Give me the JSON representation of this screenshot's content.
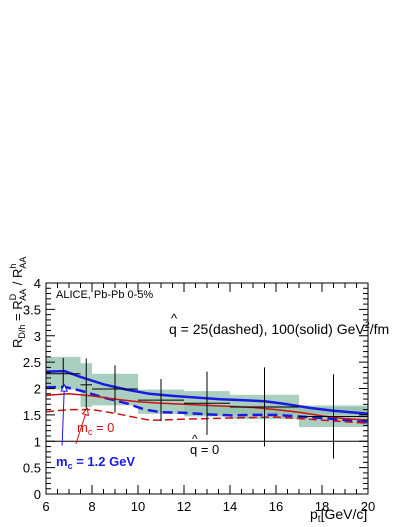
{
  "chart_data": {
    "type": "line",
    "experiment_label": "ALICE, Pb-Pb 0-5%",
    "xlabel_main": "p",
    "xlabel_sub": "t",
    "xlabel_unit": "[GeV/c]",
    "ylabel_main": "R",
    "ylabel_sub": "D/h",
    "ylabel_eq": " = R",
    "ylabel_sup_d": "D",
    "ylabel_sub_aa1": "AA",
    "ylabel_slash": " / R",
    "ylabel_sup_h": "h",
    "ylabel_sub_aa2": "AA",
    "xlim": [
      6,
      20
    ],
    "ylim": [
      0,
      4
    ],
    "x_ticks": [
      "6",
      "8",
      "10",
      "12",
      "14",
      "16",
      "18",
      "20"
    ],
    "y_ticks": [
      "0",
      "0.5",
      "1",
      "1.5",
      "2",
      "2.5",
      "3",
      "3.5",
      "4"
    ],
    "annotations": {
      "qhat_label_prefix": "q",
      "qhat_label_text": " = 25(dashed), 100(solid) GeV",
      "qhat_label_sup": "2",
      "qhat_label_suffix": "/fm",
      "qhat_zero_prefix": "q",
      "qhat_zero_text": " = 0",
      "mc_zero_prefix": "m",
      "mc_zero_sub": "c",
      "mc_zero_text": " = 0",
      "mc_12_prefix": "m",
      "mc_12_sub": "c",
      "mc_12_text": " = 1.2 GeV"
    },
    "reference_line": {
      "y": 1
    },
    "data_points": [
      {
        "x": 6.75,
        "x_err": 0.75,
        "y": 2.28,
        "y_err": 0.3,
        "sys_low": 1.98,
        "sys_high": 2.6
      },
      {
        "x": 7.75,
        "x_err": 0.25,
        "y": 2.07,
        "y_err": 0.5,
        "sys_low": 1.65,
        "sys_high": 2.48
      },
      {
        "x": 9.0,
        "x_err": 1.0,
        "y": 1.99,
        "y_err": 0.45,
        "sys_low": 1.68,
        "sys_high": 2.28
      },
      {
        "x": 11.0,
        "x_err": 1.0,
        "y": 1.78,
        "y_err": 0.4,
        "sys_low": 1.52,
        "sys_high": 1.98
      },
      {
        "x": 13.0,
        "x_err": 1.0,
        "y": 1.72,
        "y_err": 0.6,
        "sys_low": 1.47,
        "sys_high": 1.95
      },
      {
        "x": 15.5,
        "x_err": 1.5,
        "y": 1.65,
        "y_err": 0.75,
        "sys_low": 1.42,
        "sys_high": 1.88
      },
      {
        "x": 18.5,
        "x_err": 1.5,
        "y": 1.47,
        "y_err": 0.8,
        "sys_low": 1.27,
        "sys_high": 1.65
      }
    ],
    "extra_band": {
      "x_low": 12,
      "x_high": 20,
      "y_low": 1.5,
      "y_high": 1.68
    },
    "series": [
      {
        "style": "solid",
        "color": "#1a1ae6",
        "width": 2.5,
        "x": [
          6,
          6.8,
          7.5,
          8.5,
          9.5,
          10.5,
          11.5,
          12.5,
          13.5,
          14.5,
          15.5,
          16.5,
          17.5,
          18.5,
          19.5,
          20
        ],
        "y": [
          2.32,
          2.33,
          2.22,
          2.08,
          1.98,
          1.9,
          1.86,
          1.83,
          1.8,
          1.78,
          1.76,
          1.7,
          1.63,
          1.58,
          1.54,
          1.52
        ]
      },
      {
        "style": "dashed",
        "color": "#1a1ae6",
        "width": 2.5,
        "x": [
          6,
          6.8,
          7.5,
          8.5,
          9.5,
          10.3,
          11,
          12,
          13,
          14,
          15,
          16,
          17,
          18,
          19,
          20
        ],
        "y": [
          2.02,
          2.03,
          1.96,
          1.83,
          1.72,
          1.6,
          1.55,
          1.54,
          1.51,
          1.49,
          1.5,
          1.5,
          1.47,
          1.44,
          1.4,
          1.36
        ]
      },
      {
        "style": "solid",
        "color": "#cc1111",
        "width": 1.5,
        "x": [
          6,
          7,
          8,
          9,
          10,
          11,
          12,
          13,
          14,
          15,
          16,
          17,
          18,
          19,
          20
        ],
        "y": [
          1.87,
          1.9,
          1.86,
          1.8,
          1.75,
          1.72,
          1.7,
          1.68,
          1.66,
          1.64,
          1.6,
          1.55,
          1.48,
          1.43,
          1.4
        ]
      },
      {
        "style": "dashed",
        "color": "#cc1111",
        "width": 1.5,
        "x": [
          6,
          7,
          8,
          9,
          10,
          10.5,
          11,
          12,
          13,
          14,
          15,
          16,
          17,
          18,
          19,
          20
        ],
        "y": [
          1.56,
          1.6,
          1.6,
          1.53,
          1.44,
          1.4,
          1.4,
          1.42,
          1.43,
          1.44,
          1.45,
          1.46,
          1.43,
          1.4,
          1.37,
          1.34
        ]
      }
    ],
    "arrow_mc12": {
      "from": [
        6.7,
        0.92
      ],
      "to": [
        6.8,
        2.07
      ],
      "color": "#1a1ae6"
    },
    "arrow_mc0": {
      "from": [
        7.3,
        0.95
      ],
      "to": [
        7.8,
        1.62
      ],
      "color": "#cc1111"
    },
    "colors": {
      "band": "#8fbfaa",
      "data": "#000000"
    }
  }
}
